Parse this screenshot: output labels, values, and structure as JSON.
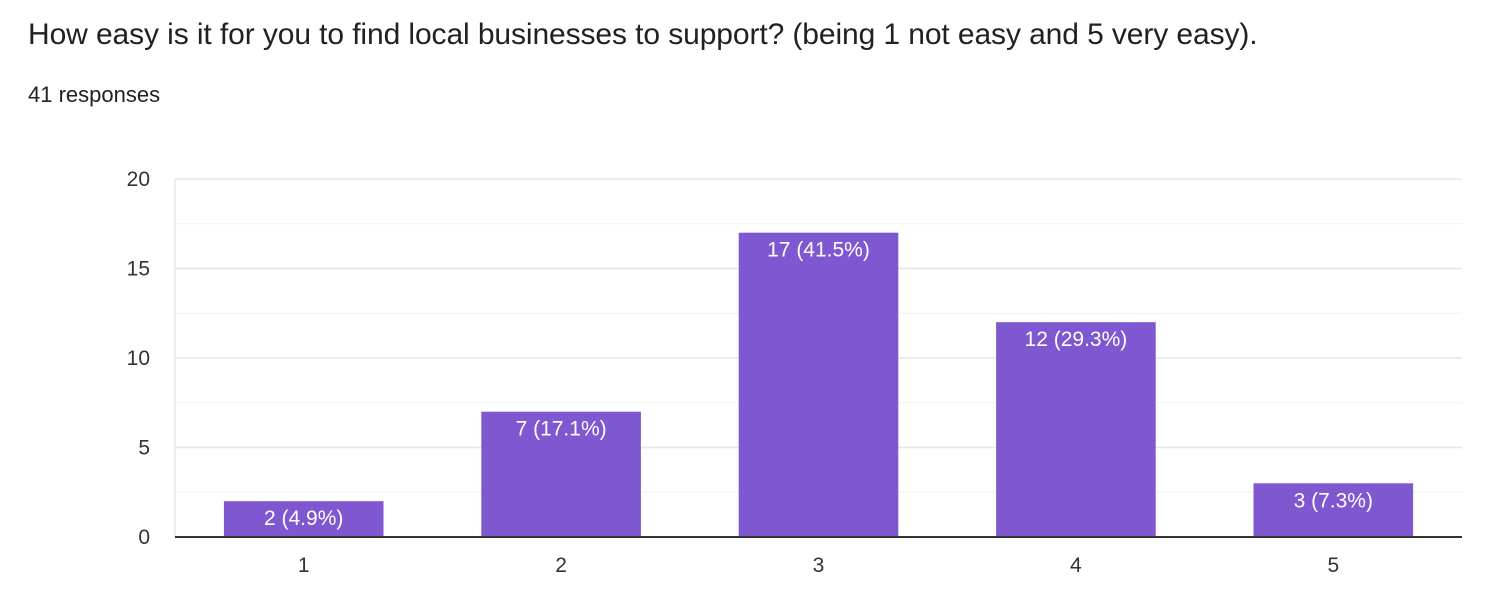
{
  "question": {
    "title": "How easy is it for you to find local businesses to support? (being 1 not easy and 5 very easy).",
    "response_count": "41 responses"
  },
  "colors": {
    "bar": "#7e57d1",
    "grid": "#e6e6e6",
    "minor_grid": "#f1f1f1",
    "axis": "#333333"
  },
  "chart_data": {
    "type": "bar",
    "title": "",
    "xlabel": "",
    "ylabel": "",
    "categories": [
      "1",
      "2",
      "3",
      "4",
      "5"
    ],
    "values": [
      2,
      7,
      17,
      12,
      3
    ],
    "data_labels": [
      "2 (4.9%)",
      "7 (17.1%)",
      "17 (41.5%)",
      "12 (29.3%)",
      "3 (7.3%)"
    ],
    "ylim": [
      0,
      20
    ],
    "yticks": [
      0,
      5,
      10,
      15,
      20
    ],
    "ytick_labels": [
      "0",
      "5",
      "10",
      "15",
      "20"
    ],
    "grid": true,
    "legend": "none"
  }
}
